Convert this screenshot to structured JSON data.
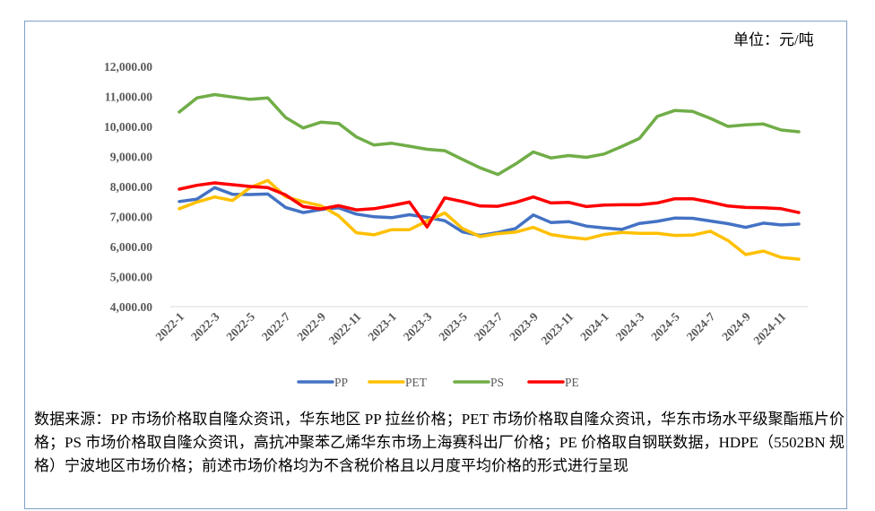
{
  "unit_label": "单位：元/吨",
  "note": "数据来源：PP 市场价格取自隆众资讯，华东地区 PP 拉丝价格；PET 市场价格取自隆众资讯，华东市场水平级聚酯瓶片价格；PS 市场价格取自隆众资讯，高抗冲聚苯乙烯华东市场上海赛科出厂价格；PE 价格取自钢联数据，HDPE（5502BN 规格）宁波地区市场价格；前述市场价格均为不含税价格且以月度平均价格的形式进行呈现",
  "chart_data": {
    "type": "line",
    "title": "",
    "xlabel": "",
    "ylabel": "",
    "ylim": [
      4000,
      12000
    ],
    "y_ticks": [
      4000,
      5000,
      6000,
      7000,
      8000,
      9000,
      10000,
      11000,
      12000
    ],
    "y_tick_labels": [
      "4,000.00",
      "5,000.00",
      "6,000.00",
      "7,000.00",
      "8,000.00",
      "9,000.00",
      "10,000.00",
      "11,000.00",
      "12,000.00"
    ],
    "grid": false,
    "legend_position": "bottom",
    "x": [
      "2022-1",
      "2022-2",
      "2022-3",
      "2022-4",
      "2022-5",
      "2022-6",
      "2022-7",
      "2022-8",
      "2022-9",
      "2022-10",
      "2022-11",
      "2022-12",
      "2023-1",
      "2023-2",
      "2023-3",
      "2023-4",
      "2023-5",
      "2023-6",
      "2023-7",
      "2023-8",
      "2023-9",
      "2023-10",
      "2023-11",
      "2023-12",
      "2024-1",
      "2024-2",
      "2024-3",
      "2024-4",
      "2024-5",
      "2024-6",
      "2024-7",
      "2024-8",
      "2024-9",
      "2024-10",
      "2024-11",
      "2024-12"
    ],
    "x_tick_labels": [
      "2022-1",
      "2022-3",
      "2022-5",
      "2022-7",
      "2022-9",
      "2022-11",
      "2023-1",
      "2023-3",
      "2023-5",
      "2023-7",
      "2023-9",
      "2023-11",
      "2024-1",
      "2024-3",
      "2024-5",
      "2024-7",
      "2024-9",
      "2024-11"
    ],
    "series": [
      {
        "name": "PP",
        "color": "#4472c4",
        "values": [
          7500,
          7580,
          7960,
          7740,
          7730,
          7750,
          7300,
          7130,
          7230,
          7290,
          7080,
          6990,
          6960,
          7060,
          6970,
          6860,
          6490,
          6370,
          6470,
          6600,
          7050,
          6800,
          6830,
          6680,
          6620,
          6570,
          6770,
          6840,
          6950,
          6940,
          6850,
          6760,
          6640,
          6780,
          6720,
          6750
        ]
      },
      {
        "name": "PET",
        "color": "#ffc000",
        "values": [
          7260,
          7480,
          7650,
          7530,
          7960,
          8200,
          7660,
          7490,
          7360,
          7020,
          6460,
          6390,
          6560,
          6560,
          6850,
          7120,
          6600,
          6330,
          6430,
          6480,
          6640,
          6400,
          6310,
          6250,
          6400,
          6470,
          6440,
          6440,
          6370,
          6380,
          6510,
          6200,
          5730,
          5850,
          5640,
          5580
        ]
      },
      {
        "name": "PS",
        "color": "#70ad47",
        "values": [
          10480,
          10950,
          11060,
          10980,
          10900,
          10950,
          10300,
          9950,
          10140,
          10100,
          9650,
          9380,
          9440,
          9340,
          9240,
          9190,
          8900,
          8620,
          8400,
          8750,
          9150,
          8950,
          9030,
          8970,
          9080,
          9330,
          9600,
          10330,
          10530,
          10500,
          10270,
          10000,
          10050,
          10080,
          9880,
          9820
        ]
      },
      {
        "name": "PE",
        "color": "#ff0000",
        "values": [
          7910,
          8040,
          8120,
          8060,
          8000,
          7960,
          7720,
          7330,
          7250,
          7360,
          7220,
          7260,
          7360,
          7480,
          6650,
          7620,
          7500,
          7350,
          7340,
          7470,
          7650,
          7450,
          7470,
          7330,
          7380,
          7390,
          7390,
          7450,
          7590,
          7590,
          7480,
          7350,
          7300,
          7290,
          7260,
          7130
        ]
      }
    ]
  }
}
